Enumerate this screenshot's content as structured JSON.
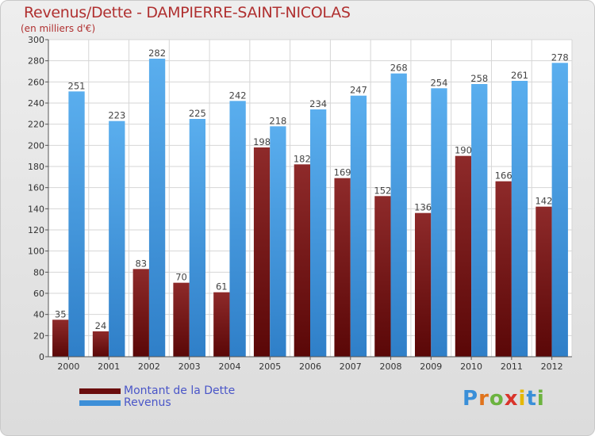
{
  "header": {
    "title": "Revenus/Dette - DAMPIERRE-SAINT-NICOLAS",
    "unit": "(en milliers d'€)"
  },
  "chart_data": {
    "type": "bar",
    "title": "Revenus/Dette - DAMPIERRE-SAINT-NICOLAS",
    "ylabel": "(en milliers d'€)",
    "xlabel": "",
    "categories": [
      "2000",
      "2001",
      "2002",
      "2003",
      "2004",
      "2005",
      "2006",
      "2007",
      "2008",
      "2009",
      "2010",
      "2011",
      "2012"
    ],
    "series": [
      {
        "name": "Montant de la Dette",
        "color": "#7a1515",
        "values": [
          35,
          24,
          83,
          70,
          61,
          198,
          182,
          169,
          152,
          136,
          190,
          166,
          142
        ]
      },
      {
        "name": "Revenus",
        "color": "#3d8fd8",
        "values": [
          251,
          223,
          282,
          225,
          242,
          218,
          234,
          247,
          268,
          254,
          258,
          261,
          278
        ]
      }
    ],
    "ylim": [
      0,
      300
    ],
    "ytick_step": 20,
    "grid": true,
    "legend_position": "bottom-left"
  },
  "legend": {
    "items": [
      {
        "label": "Montant de la Dette",
        "color": "#6b0d0d"
      },
      {
        "label": "Revenus",
        "color": "#3d8fd8"
      }
    ]
  },
  "logo": {
    "letters": [
      "P",
      "r",
      "o",
      "x",
      "i",
      "t",
      "i"
    ],
    "colors": [
      "#3a8fd8",
      "#e0731c",
      "#6cb33f",
      "#d9342b",
      "#e5b700",
      "#3a8fd8",
      "#6cb33f"
    ]
  }
}
